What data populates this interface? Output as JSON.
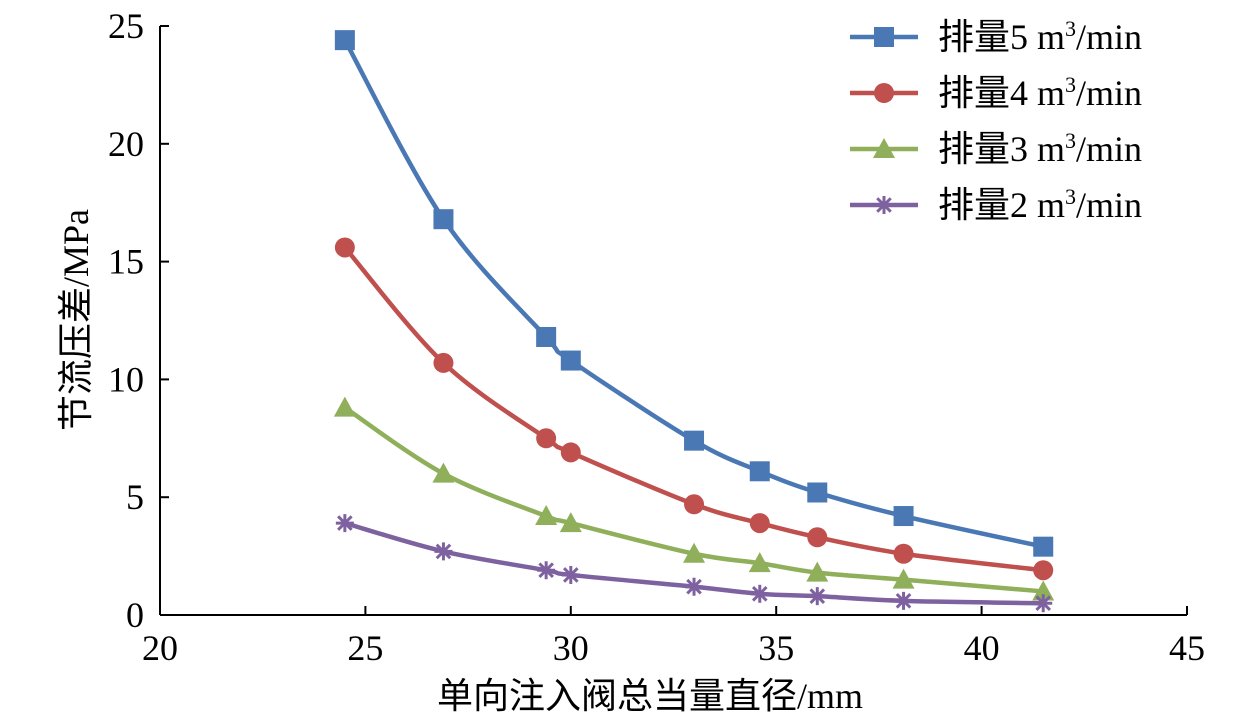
{
  "chart_data": {
    "type": "line",
    "xlabel": "单向注入阀总当量直径/mm",
    "ylabel": "节流压差/MPa",
    "xlim": [
      20,
      45
    ],
    "ylim": [
      0,
      25
    ],
    "xticks": [
      20,
      25,
      30,
      35,
      40,
      45
    ],
    "yticks": [
      0,
      5,
      10,
      15,
      20,
      25
    ],
    "grid": false,
    "legend_position": "top-right",
    "x": [
      24.5,
      26.9,
      29.4,
      30.0,
      33.0,
      34.6,
      36.0,
      38.1,
      41.5
    ],
    "series": [
      {
        "name": "排量5 m",
        "unit_sup": "3",
        "unit_tail": "/min",
        "marker": "square",
        "color": "#4a78b5",
        "values": [
          24.4,
          16.8,
          11.8,
          10.8,
          7.4,
          6.1,
          5.2,
          4.2,
          2.9
        ]
      },
      {
        "name": "排量4 m",
        "unit_sup": "3",
        "unit_tail": "/min",
        "marker": "circle",
        "color": "#c0504d",
        "values": [
          15.6,
          10.7,
          7.5,
          6.9,
          4.7,
          3.9,
          3.3,
          2.6,
          1.9
        ]
      },
      {
        "name": "排量3 m",
        "unit_sup": "3",
        "unit_tail": "/min",
        "marker": "triangle",
        "color": "#8faf5a",
        "values": [
          8.8,
          6.0,
          4.2,
          3.9,
          2.6,
          2.2,
          1.8,
          1.5,
          1.0
        ]
      },
      {
        "name": "排量2 m",
        "unit_sup": "3",
        "unit_tail": "/min",
        "marker": "star",
        "color": "#7e62a0",
        "values": [
          3.9,
          2.7,
          1.9,
          1.7,
          1.2,
          0.9,
          0.8,
          0.6,
          0.5
        ]
      }
    ]
  }
}
